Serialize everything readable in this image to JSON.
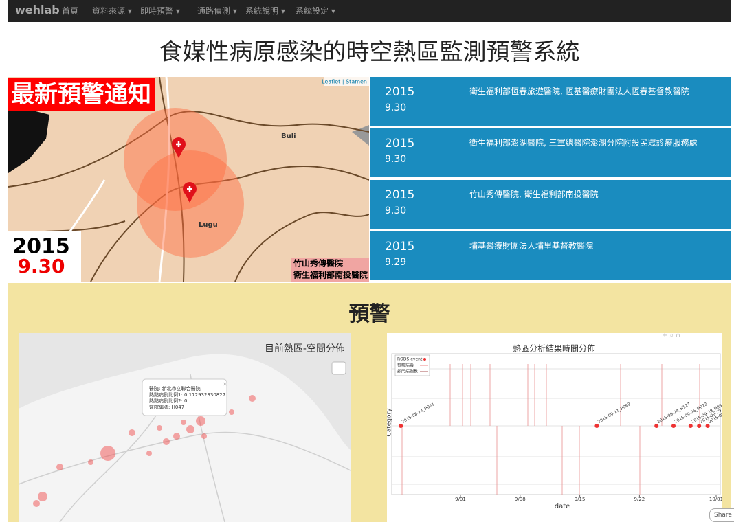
{
  "nav": {
    "brand": "wehlab",
    "items": [
      "首頁",
      "資料來源",
      "即時預警",
      "通路偵測",
      "系統說明",
      "系統設定"
    ]
  },
  "title": "食媒性病原感染的時空熱區監測預警系統",
  "alert_map": {
    "badge": "最新預警通知",
    "year": "2015",
    "date": "9.30",
    "attribution": "Leaflet | Stamen",
    "places": [
      "Buli",
      "Lugu"
    ],
    "hospitals": [
      "竹山秀傳醫院",
      "衛生福利部南投醫院"
    ]
  },
  "alerts": [
    {
      "year": "2015",
      "date": "9.30",
      "hospitals": "衛生福利部恆春旅遊醫院, 恆基醫療財團法人恆春基督教醫院"
    },
    {
      "year": "2015",
      "date": "9.30",
      "hospitals": "衛生福利部澎湖醫院, 三軍總醫院澎湖分院附設民眾診療服務處"
    },
    {
      "year": "2015",
      "date": "9.30",
      "hospitals": "竹山秀傳醫院, 衛生福利部南投醫院"
    },
    {
      "year": "2015",
      "date": "9.29",
      "hospitals": "埔基醫療財團法人埔里基督教醫院"
    }
  ],
  "section_title": "預警",
  "hotspot_map": {
    "title": "目前熱區-空間分佈",
    "popup": [
      "醫院: 新北市立聯合醫院",
      "熱點病例比例1: 0.172932330827",
      "熱點病例比例2: 0",
      "醫院編號: H047"
    ]
  },
  "timeline": {
    "title": "熱區分析結果時間分佈",
    "legend": [
      "RODS event",
      "檢驗病毒",
      "診門病例數"
    ],
    "ylabel": "Category",
    "xlabel": "date",
    "xticks": [
      "9/01",
      "9/08",
      "9/15",
      "9/22",
      "10/01"
    ],
    "events": [
      "2015-08-24_H061",
      "2015-09-17_H063",
      "2015-09-24_H127",
      "2015-09-26_H022",
      "2015-09-28_H084",
      "2015-09-29_H076",
      "2015-09-30_H047"
    ]
  },
  "share": "Share"
}
